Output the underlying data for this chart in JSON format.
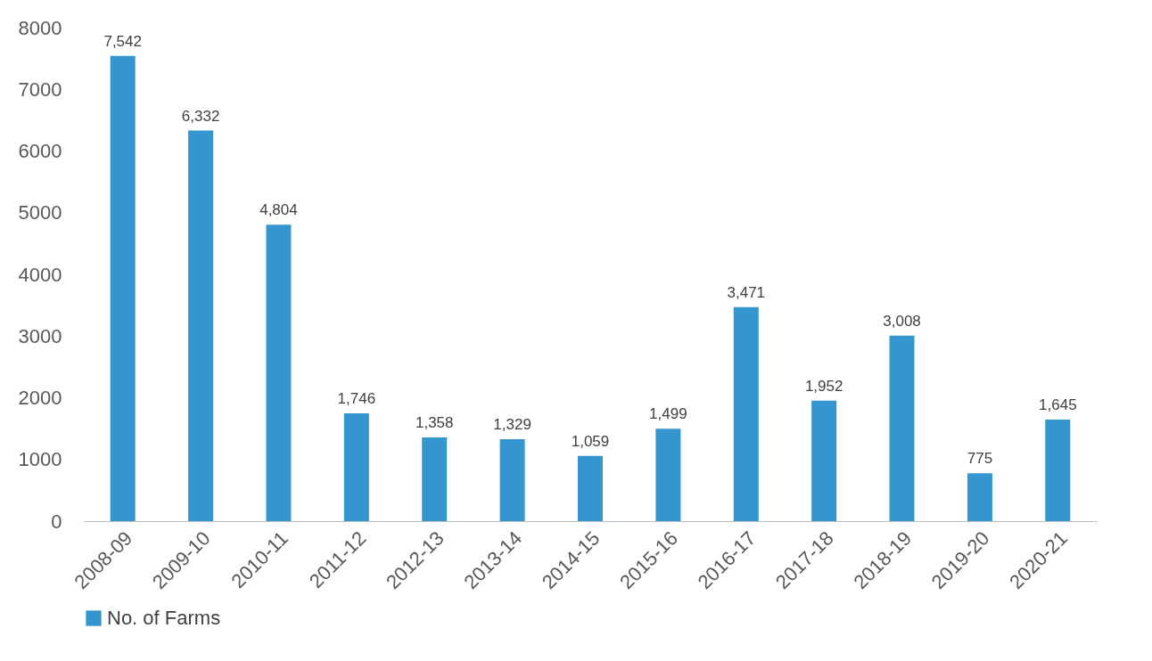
{
  "chart_data": {
    "type": "bar",
    "categories": [
      "2008-09",
      "2009-10",
      "2010-11",
      "2011-12",
      "2012-13",
      "2013-14",
      "2014-15",
      "2015-16",
      "2016-17",
      "2017-18",
      "2018-19",
      "2019-20",
      "2020-21"
    ],
    "series": [
      {
        "name": "No. of Farms",
        "color": "#3596cf",
        "values": [
          7542,
          6332,
          4804,
          1746,
          1358,
          1329,
          1059,
          1499,
          3471,
          1952,
          3008,
          775,
          1645
        ],
        "value_labels": [
          "7,542",
          "6,332",
          "4,804",
          "1,746",
          "1,358",
          "1,329",
          "1,059",
          "1,499",
          "3,471",
          "1,952",
          "3,008",
          "775",
          "1,645"
        ]
      }
    ],
    "ylim": [
      0,
      8000
    ],
    "yticks": [
      0,
      1000,
      2000,
      3000,
      4000,
      5000,
      6000,
      7000,
      8000
    ],
    "grid": false,
    "legend": "bottom"
  }
}
